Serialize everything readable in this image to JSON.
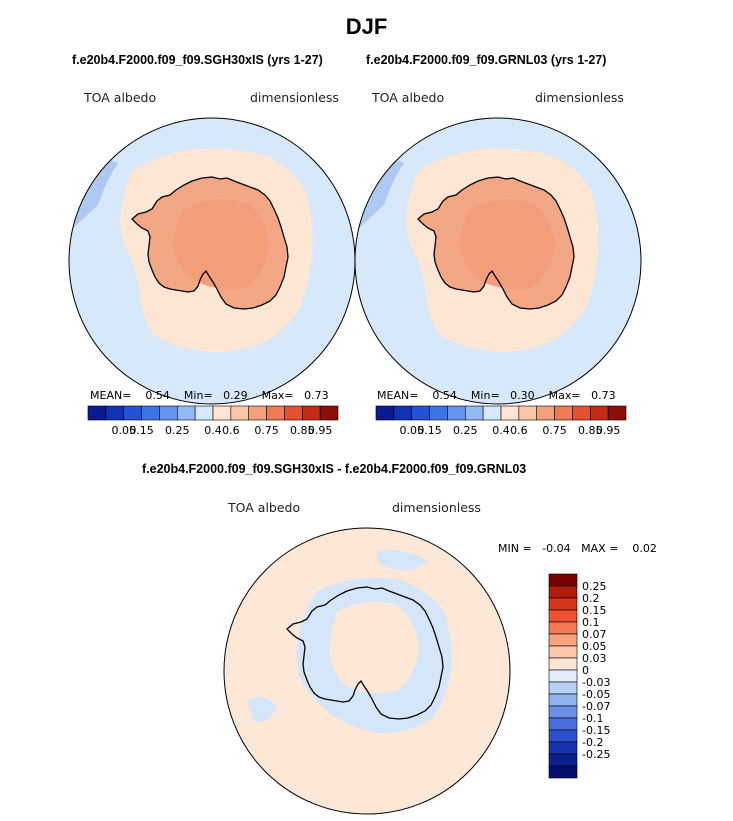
{
  "title": "DJF",
  "panels": [
    {
      "case_label": "f.e20b4.F2000.f09_f09.SGH30xIS (yrs 1-27)",
      "variable": "TOA albedo",
      "units": "dimensionless",
      "stats": {
        "mean_label": "MEAN=",
        "mean": "0.54",
        "min_label": "Min=",
        "min": "0.29",
        "max_label": "Max=",
        "max": "0.73"
      }
    },
    {
      "case_label": "f.e20b4.F2000.f09_f09.GRNL03 (yrs 1-27)",
      "variable": "TOA albedo",
      "units": "dimensionless",
      "stats": {
        "mean_label": "MEAN=",
        "mean": "0.54",
        "min_label": "Min=",
        "min": "0.30",
        "max_label": "Max=",
        "max": "0.73"
      }
    }
  ],
  "abs_colorbar": {
    "colors": [
      "#0b1a8c",
      "#1432b4",
      "#2452d6",
      "#3d74e8",
      "#6495ee",
      "#94b8f4",
      "#d6e8fb",
      "#fde4d2",
      "#fac5a6",
      "#f6a07a",
      "#f07a52",
      "#e5502e",
      "#c42a14",
      "#8b0e08"
    ],
    "labels": [
      "0.05",
      "0.15",
      "0.25",
      "0.4",
      "0.6",
      "0.75",
      "0.85",
      "0.95"
    ]
  },
  "diff": {
    "case_label": "f.e20b4.F2000.f09_f09.SGH30xIS - f.e20b4.F2000.f09_f09.GRNL03",
    "variable": "TOA albedo",
    "units": "dimensionless",
    "stats": {
      "min_label": "MIN =",
      "min": "-0.04",
      "max_label": "MAX =",
      "max": "0.02"
    }
  },
  "diff_colorbar": {
    "colors": [
      "#7a0000",
      "#b21a0c",
      "#d8341a",
      "#ee5030",
      "#f47a52",
      "#f8a37c",
      "#fbc8a8",
      "#fde6d6",
      "#e2eefb",
      "#b6d0f5",
      "#8fb3f0",
      "#6a92ea",
      "#4a70e0",
      "#2a4fd0",
      "#1733b0",
      "#0b1f8e",
      "#060f70"
    ],
    "labels": [
      "0.25",
      "0.2",
      "0.15",
      "0.1",
      "0.07",
      "0.05",
      "0.03",
      "0",
      "-0.03",
      "-0.05",
      "-0.07",
      "-0.1",
      "-0.15",
      "-0.2",
      "-0.25"
    ]
  },
  "map_colors": {
    "ocean": "#d7e8fa",
    "sea_ice": "#fde6d4",
    "ice_sheet": "#f4a784",
    "ice_core": "#f29e7b",
    "blue_patch": "#aecaf3",
    "diff_pos": "#fde8d8",
    "diff_neg": "#d6e6fa"
  }
}
